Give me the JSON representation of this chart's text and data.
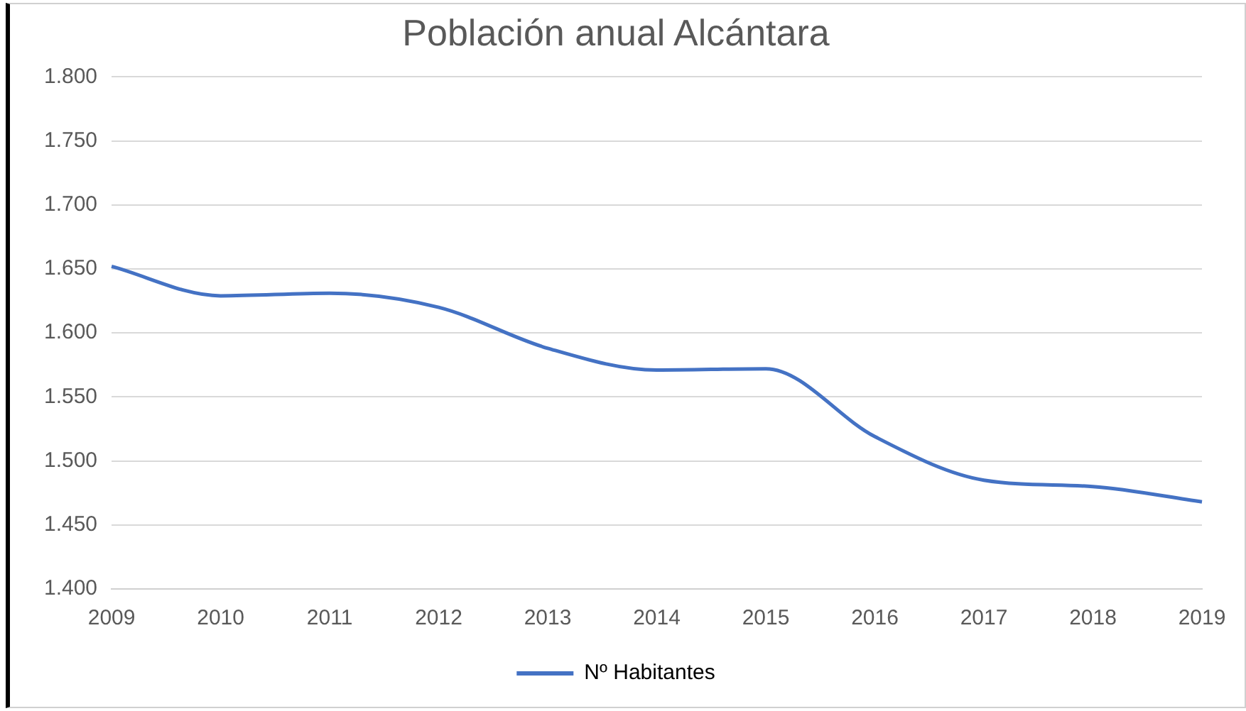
{
  "chart_data": {
    "type": "line",
    "title": "Población anual Alcántara",
    "categories": [
      "2009",
      "2010",
      "2011",
      "2012",
      "2013",
      "2014",
      "2015",
      "2016",
      "2017",
      "2018",
      "2019"
    ],
    "series": [
      {
        "name": "Nº Habitantes",
        "color": "#4472c4",
        "values": [
          1652,
          1629,
          1631,
          1620,
          1588,
          1571,
          1572,
          1519,
          1485,
          1480,
          1468
        ]
      }
    ],
    "ylim": [
      1400,
      1800
    ],
    "yticks": [
      {
        "value": 1400,
        "label": "1.400"
      },
      {
        "value": 1450,
        "label": "1.450"
      },
      {
        "value": 1500,
        "label": "1.500"
      },
      {
        "value": 1550,
        "label": "1.550"
      },
      {
        "value": 1600,
        "label": "1.600"
      },
      {
        "value": 1650,
        "label": "1.650"
      },
      {
        "value": 1700,
        "label": "1.700"
      },
      {
        "value": 1750,
        "label": "1.750"
      },
      {
        "value": 1800,
        "label": "1.800"
      }
    ],
    "grid": "y",
    "legend": "bottom",
    "marker": "none",
    "line_style": "solid"
  }
}
